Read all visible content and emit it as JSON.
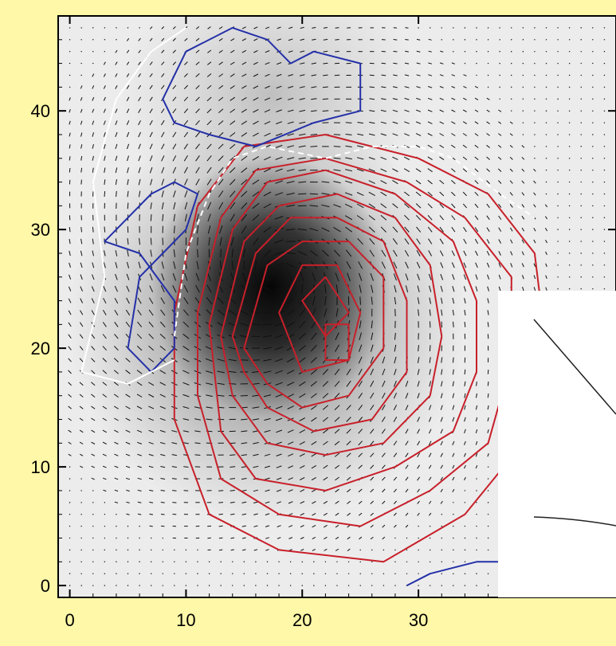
{
  "chart_data": {
    "type": "heatmap",
    "title": "",
    "xlabel": "",
    "ylabel": "",
    "xlim": [
      -1,
      47
    ],
    "ylim": [
      -1,
      48
    ],
    "x_ticks": [
      0,
      10,
      20,
      30
    ],
    "y_ticks": [
      0,
      10,
      20,
      30,
      40
    ],
    "grid": false,
    "colormap": "grayscale (white = low, black = high)",
    "intensity_peak": [
      18,
      26
    ],
    "vector_field": "polarization vectors (short black segments on each grid cell)",
    "contour_sets": [
      {
        "color": "#c8202a",
        "style": "solid",
        "levels": [
          [
            [
              9,
              23
            ],
            [
              11,
              32
            ],
            [
              15,
              37
            ],
            [
              22,
              38
            ],
            [
              30,
              36
            ],
            [
              36,
              33
            ],
            [
              40,
              28
            ],
            [
              41,
              20
            ],
            [
              39,
              12
            ],
            [
              34,
              6
            ],
            [
              27,
              2
            ],
            [
              18,
              3
            ],
            [
              12,
              6
            ],
            [
              9,
              14
            ]
          ],
          [
            [
              11,
              23
            ],
            [
              13,
              31
            ],
            [
              16,
              35
            ],
            [
              22,
              36
            ],
            [
              29,
              34
            ],
            [
              34,
              31
            ],
            [
              38,
              26
            ],
            [
              38,
              19
            ],
            [
              36,
              12
            ],
            [
              31,
              8
            ],
            [
              25,
              5
            ],
            [
              18,
              6
            ],
            [
              13,
              9
            ],
            [
              11,
              16
            ]
          ],
          [
            [
              12,
              22
            ],
            [
              14,
              30
            ],
            [
              17,
              34
            ],
            [
              22,
              35
            ],
            [
              28,
              33
            ],
            [
              33,
              29
            ],
            [
              35,
              24
            ],
            [
              35,
              18
            ],
            [
              33,
              13
            ],
            [
              28,
              10
            ],
            [
              22,
              8
            ],
            [
              16,
              9
            ],
            [
              13,
              13
            ]
          ],
          [
            [
              13,
              21
            ],
            [
              15,
              29
            ],
            [
              18,
              32
            ],
            [
              23,
              33
            ],
            [
              28,
              31
            ],
            [
              31,
              27
            ],
            [
              32,
              21
            ],
            [
              31,
              16
            ],
            [
              27,
              12
            ],
            [
              22,
              11
            ],
            [
              17,
              12
            ],
            [
              14,
              16
            ]
          ],
          [
            [
              14,
              21
            ],
            [
              16,
              28
            ],
            [
              19,
              31
            ],
            [
              23,
              31
            ],
            [
              27,
              29
            ],
            [
              29,
              24
            ],
            [
              29,
              18
            ],
            [
              26,
              14
            ],
            [
              21,
              13
            ],
            [
              17,
              15
            ],
            [
              15,
              18
            ]
          ],
          [
            [
              15,
              20
            ],
            [
              17,
              27
            ],
            [
              20,
              29
            ],
            [
              24,
              29
            ],
            [
              27,
              26
            ],
            [
              27,
              20
            ],
            [
              24,
              16
            ],
            [
              20,
              15
            ],
            [
              17,
              17
            ]
          ],
          [
            [
              18,
              23
            ],
            [
              20,
              27
            ],
            [
              23,
              27
            ],
            [
              25,
              23
            ],
            [
              24,
              19
            ],
            [
              20,
              18
            ]
          ],
          [
            [
              20,
              24
            ],
            [
              22,
              26
            ],
            [
              24,
              23
            ],
            [
              22,
              21
            ]
          ],
          [
            [
              22,
              22
            ],
            [
              24,
              22
            ],
            [
              24,
              19
            ],
            [
              22,
              19
            ]
          ]
        ]
      },
      {
        "color": "#2430a8",
        "style": "solid",
        "levels": [
          [
            [
              8,
              41
            ],
            [
              10,
              45
            ],
            [
              14,
              47
            ],
            [
              17,
              46
            ],
            [
              19,
              44
            ],
            [
              21,
              45
            ],
            [
              25,
              44
            ],
            [
              25,
              40
            ],
            [
              21,
              39
            ],
            [
              16,
              37
            ],
            [
              12,
              38
            ],
            [
              9,
              39
            ]
          ],
          [
            [
              3,
              29
            ],
            [
              5,
              31
            ],
            [
              7,
              33
            ],
            [
              9,
              34
            ],
            [
              11,
              33
            ],
            [
              10,
              30
            ],
            [
              8,
              28
            ],
            [
              6,
              26
            ],
            [
              5,
              20
            ],
            [
              7,
              18
            ],
            [
              9,
              20
            ],
            [
              9,
              24
            ],
            [
              6,
              28
            ]
          ],
          [
            [
              29,
              0
            ],
            [
              31,
              1
            ],
            [
              35,
              2
            ],
            [
              39,
              2
            ],
            [
              42,
              0
            ]
          ]
        ]
      },
      {
        "color": "#ffffff",
        "style": "dashed",
        "levels": [
          [
            [
              9,
              21
            ],
            [
              10,
              28
            ],
            [
              12,
              33
            ],
            [
              14,
              36
            ],
            [
              17,
              37
            ],
            [
              22,
              36
            ],
            [
              26,
              37
            ],
            [
              30,
              37
            ],
            [
              33,
              36
            ],
            [
              37,
              33
            ],
            [
              40,
              31
            ]
          ]
        ]
      },
      {
        "color": "#ffffff",
        "style": "solid",
        "levels": [
          [
            [
              1,
              18
            ],
            [
              3,
              26
            ],
            [
              2,
              34
            ],
            [
              4,
              41
            ],
            [
              7,
              45
            ],
            [
              10,
              47
            ]
          ],
          [
            [
              1,
              18
            ],
            [
              5,
              17
            ],
            [
              9,
              19
            ]
          ]
        ]
      }
    ]
  }
}
